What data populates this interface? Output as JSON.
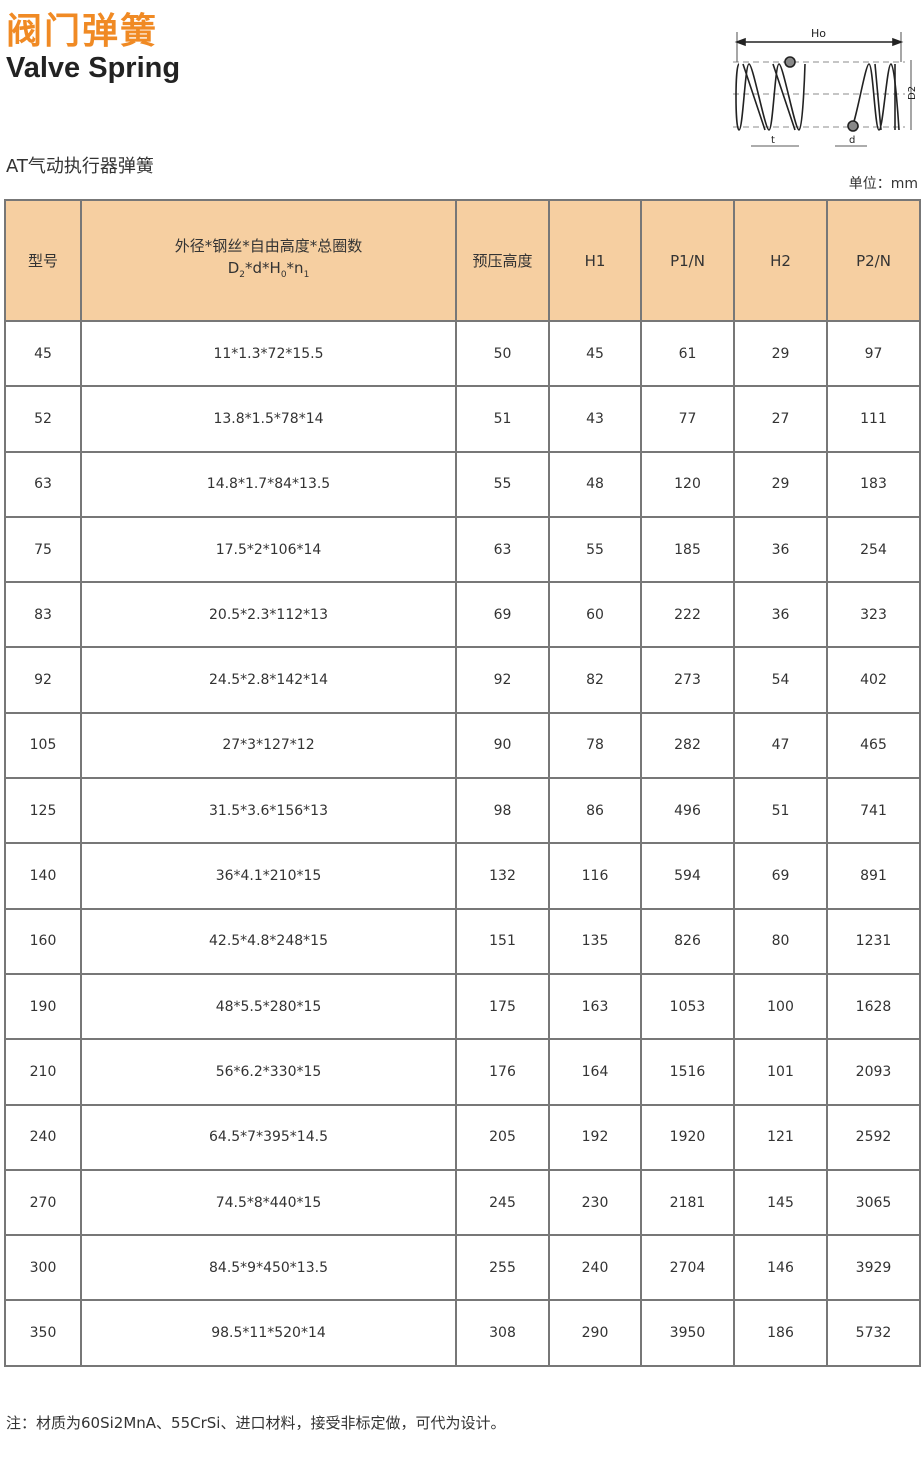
{
  "title_cn": "阀门弹簧",
  "title_en": "Valve Spring",
  "subtitle": "AT气动执行器弹簧",
  "unit": "单位：mm",
  "diagram": {
    "labels": {
      "free_height": "Ho",
      "diameter": "D2",
      "pitch": "t",
      "wire": "d"
    }
  },
  "table": {
    "headers": {
      "model": "型号",
      "spec_line1": "外径*钢丝*自由高度*总圈数",
      "preload": "预压高度",
      "h1": "H1",
      "p1": "P1/N",
      "h2": "H2",
      "p2": "P2/N"
    },
    "rows": [
      [
        "45",
        "11*1.3*72*15.5",
        "50",
        "45",
        "61",
        "29",
        "97"
      ],
      [
        "52",
        "13.8*1.5*78*14",
        "51",
        "43",
        "77",
        "27",
        "111"
      ],
      [
        "63",
        "14.8*1.7*84*13.5",
        "55",
        "48",
        "120",
        "29",
        "183"
      ],
      [
        "75",
        "17.5*2*106*14",
        "63",
        "55",
        "185",
        "36",
        "254"
      ],
      [
        "83",
        "20.5*2.3*112*13",
        "69",
        "60",
        "222",
        "36",
        "323"
      ],
      [
        "92",
        "24.5*2.8*142*14",
        "92",
        "82",
        "273",
        "54",
        "402"
      ],
      [
        "105",
        "27*3*127*12",
        "90",
        "78",
        "282",
        "47",
        "465"
      ],
      [
        "125",
        "31.5*3.6*156*13",
        "98",
        "86",
        "496",
        "51",
        "741"
      ],
      [
        "140",
        "36*4.1*210*15",
        "132",
        "116",
        "594",
        "69",
        "891"
      ],
      [
        "160",
        "42.5*4.8*248*15",
        "151",
        "135",
        "826",
        "80",
        "1231"
      ],
      [
        "190",
        "48*5.5*280*15",
        "175",
        "163",
        "1053",
        "100",
        "1628"
      ],
      [
        "210",
        "56*6.2*330*15",
        "176",
        "164",
        "1516",
        "101",
        "2093"
      ],
      [
        "240",
        "64.5*7*395*14.5",
        "205",
        "192",
        "1920",
        "121",
        "2592"
      ],
      [
        "270",
        "74.5*8*440*15",
        "245",
        "230",
        "2181",
        "145",
        "3065"
      ],
      [
        "300",
        "84.5*9*450*13.5",
        "255",
        "240",
        "2704",
        "146",
        "3929"
      ],
      [
        "350",
        "98.5*11*520*14",
        "308",
        "290",
        "3950",
        "186",
        "5732"
      ]
    ]
  },
  "note": "注：材质为60Si2MnA、55CrSi、进口材料，接受非标定做，可代为设计。",
  "colors": {
    "title": "#f08a24",
    "header_bg": "#f6cfa1",
    "border": "#777777"
  }
}
